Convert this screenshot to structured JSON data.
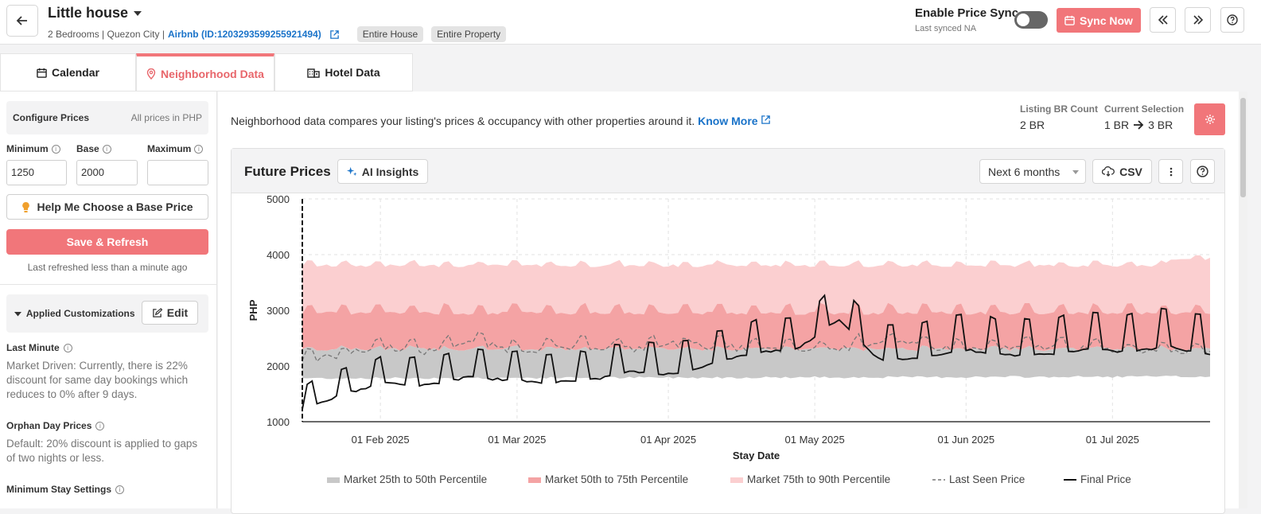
{
  "header": {
    "title": "Little house",
    "details": "2 Bedrooms | Quezon City |",
    "listing_link": "Airbnb (ID:1203293599255921494)",
    "tags": [
      "Entire House",
      "Entire Property"
    ],
    "price_sync_label": "Enable Price Sync",
    "last_synced": "Last synced NA",
    "price_sync_enabled": false,
    "sync_now_label": "Sync Now"
  },
  "tabs": [
    {
      "label": "Calendar",
      "icon": "calendar-icon",
      "active": false
    },
    {
      "label": "Neighborhood Data",
      "icon": "map-pin-icon",
      "active": true
    },
    {
      "label": "Hotel Data",
      "icon": "building-icon",
      "active": false
    }
  ],
  "sidebar": {
    "configure_title": "Configure Prices",
    "currency_note": "All prices in PHP",
    "min_label": "Minimum",
    "base_label": "Base",
    "max_label": "Maximum",
    "min_value": "1250",
    "base_value": "2000",
    "max_value": "",
    "help_button": "Help Me Choose a Base Price",
    "save_button": "Save & Refresh",
    "last_refreshed": "Last refreshed less than a minute ago",
    "customizations_title": "Applied Customizations",
    "edit_button": "Edit",
    "last_minute_title": "Last Minute",
    "last_minute_text": "Market Driven: Currently, there is 22% discount for same day bookings which reduces to 0% after 9 days.",
    "orphan_title": "Orphan Day Prices",
    "orphan_text": "Default: 20% discount is applied to gaps of two nights or less.",
    "min_stay_title": "Minimum Stay Settings"
  },
  "main": {
    "description": "Neighborhood data compares your listing's prices & occupancy with other properties around it.",
    "know_more": "Know More",
    "listing_br_label": "Listing BR Count",
    "listing_br_value": "2 BR",
    "current_selection_label": "Current Selection",
    "selection_from": "1 BR",
    "selection_to": "3 BR"
  },
  "panel": {
    "title": "Future Prices",
    "ai_insights": "AI Insights",
    "range_select": "Next 6 months",
    "csv": "CSV"
  },
  "colors": {
    "accent": "#f1767a",
    "p25_50": "#c8c8c8",
    "p50_75": "#f4a3a4",
    "p75_90": "#fbcfd0",
    "link": "#1a73c9"
  },
  "chart_data": {
    "type": "area",
    "title": "",
    "xlabel": "Stay Date",
    "ylabel": "PHP",
    "ylim": [
      1000,
      5000
    ],
    "yticks": [
      "5000",
      "4000",
      "3000",
      "2000",
      "1000"
    ],
    "x_start": "2025-01-16",
    "x_end": "2025-07-21",
    "xticks": [
      {
        "date": "2025-02-01",
        "label": "01 Feb 2025"
      },
      {
        "date": "2025-03-01",
        "label": "01 Mar 2025"
      },
      {
        "date": "2025-04-01",
        "label": "01 Apr 2025"
      },
      {
        "date": "2025-05-01",
        "label": "01 May 2025"
      },
      {
        "date": "2025-06-01",
        "label": "01 Jun 2025"
      },
      {
        "date": "2025-07-01",
        "label": "01 Jul 2025"
      }
    ],
    "grid": true,
    "legend_position": "bottom",
    "bands": [
      {
        "name": "Market 25th to 50th Percentile",
        "lower_approx": 1780,
        "upper_approx": 2300
      },
      {
        "name": "Market 50th to 75th Percentile",
        "lower_approx": 2300,
        "upper_approx": 2950
      },
      {
        "name": "Market 75th to 90th Percentile",
        "lower_approx": 2950,
        "upper_approx": 3800
      }
    ],
    "series": [
      {
        "name": "Last Seen Price",
        "style": "dashed",
        "values_approx": [
          2100,
          2200,
          2350,
          2250,
          2450,
          2300,
          2300,
          2350,
          2300,
          2400,
          2350,
          2300,
          2280,
          2300,
          2450,
          2350,
          2300,
          2300,
          2350,
          2300,
          2280,
          2300,
          2250
        ]
      },
      {
        "name": "Final Price",
        "style": "solid",
        "values_approx": [
          1200,
          1500,
          1700,
          1650,
          1800,
          1750,
          1700,
          1750,
          1900,
          1850,
          2050,
          2250,
          2300,
          2850,
          2100,
          2150,
          2300,
          2200,
          2200,
          2300,
          2250,
          2350,
          2200
        ]
      }
    ]
  }
}
